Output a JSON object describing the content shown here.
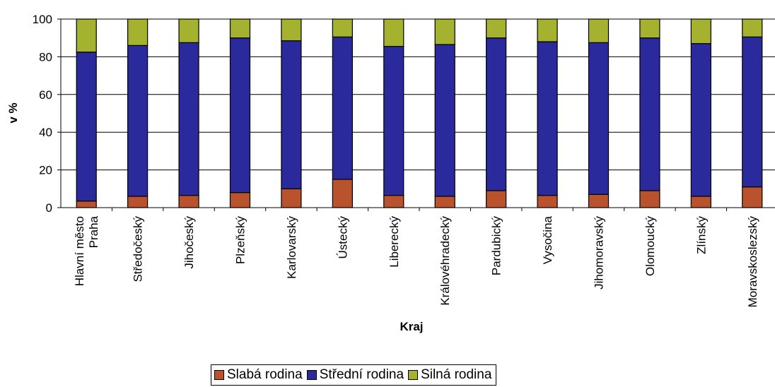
{
  "chart_data": {
    "type": "bar",
    "stacked": true,
    "normalized_percent": true,
    "categories": [
      "Hlavní město Praha",
      "Středočeský",
      "Jihočeský",
      "Plzeňský",
      "Karlovarský",
      "Ústecký",
      "Liberecký",
      "Královéhradecký",
      "Pardubický",
      "Vysočina",
      "Jihomoravský",
      "Olomoucký",
      "Zlínský",
      "Moravskoslezský"
    ],
    "category_lines": [
      [
        "Hlavní město",
        "Praha"
      ],
      [
        "Středočeský"
      ],
      [
        "Jihočeský"
      ],
      [
        "Plzeňský"
      ],
      [
        "Karlovarský"
      ],
      [
        "Ústecký"
      ],
      [
        "Liberecký"
      ],
      [
        "Královéhradecký"
      ],
      [
        "Pardubický"
      ],
      [
        "Vysočina"
      ],
      [
        "Jihomoravský"
      ],
      [
        "Olomoucký"
      ],
      [
        "Zlínský"
      ],
      [
        "Moravskoslezský"
      ]
    ],
    "series": [
      {
        "name": "Slabá rodina",
        "color": "#b8532d",
        "values": [
          3.5,
          6,
          6.5,
          8,
          10,
          15,
          6.5,
          6,
          9,
          6.5,
          7,
          9,
          6,
          11
        ]
      },
      {
        "name": "Střední rodina",
        "color": "#2a2a9c",
        "values": [
          79,
          80,
          81,
          82,
          78.5,
          75.5,
          79,
          80.5,
          81,
          81.5,
          80.5,
          81,
          81,
          79.5
        ]
      },
      {
        "name": "Silná rodina",
        "color": "#a4b22f",
        "values": [
          17.5,
          14,
          12.5,
          10,
          11.5,
          9.5,
          14.5,
          13.5,
          10,
          12,
          12.5,
          10,
          13,
          9.5
        ]
      }
    ],
    "xlabel": "Kraj",
    "ylabel": "v %",
    "ylim": [
      0,
      100
    ],
    "yticks": [
      0,
      20,
      40,
      60,
      80,
      100
    ],
    "grid": true,
    "legend_position": "bottom"
  }
}
